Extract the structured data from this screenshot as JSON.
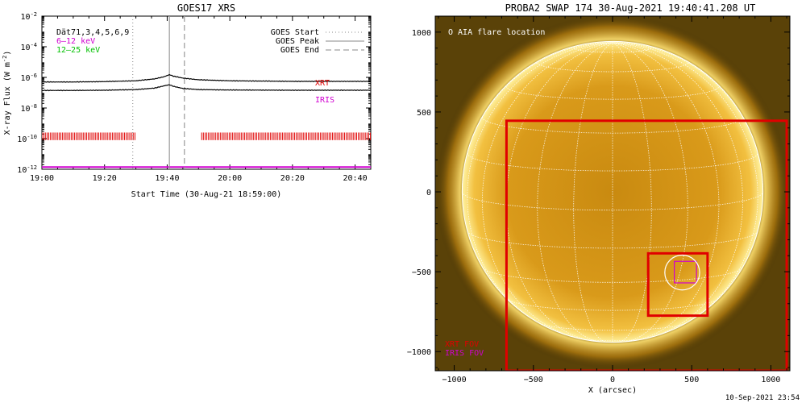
{
  "goes_panel": {
    "title": "GOES17 XRS",
    "ylabel_main": "X-ray Flux (W m",
    "ylabel_sup": "-2",
    "ylabel_close": ")",
    "xlabel": "Start Time (30-Aug-21 18:59:00)",
    "key_lines": [
      "Dät71,3,4,5,6,9",
      "6–12 keV",
      "12–25 keV"
    ],
    "key_colors": [
      "#000000",
      "#d000d0",
      "#00c000"
    ],
    "legend": [
      "GOES Start",
      "GOES Peak",
      "GOES End"
    ],
    "xrt_label": "XRT",
    "iris_label": "IRIS",
    "xrt_color": "#e00000",
    "iris_color": "#d000d0"
  },
  "swap_panel": {
    "title": "PROBA2 SWAP 174 30-Aug-2021 19:40:41.208 UT",
    "annotation": "O AIA flare location",
    "fov_labels": [
      "XRT FOV",
      "IRIS FOV"
    ],
    "fov_colors": [
      "#e00000",
      "#d000d0"
    ],
    "xlabel": "X (arcsec)",
    "footer": "10-Sep-2021 23:54"
  },
  "chart_data": [
    {
      "type": "line",
      "title": "GOES17 XRS",
      "xlabel": "Start Time (30-Aug-21 18:59:00)",
      "ylabel": "X-ray Flux (W m^-2)",
      "x_ticks": [
        "19:00",
        "19:20",
        "19:40",
        "20:00",
        "20:20",
        "20:40"
      ],
      "x_tick_minutes": [
        0,
        20,
        40,
        60,
        80,
        100
      ],
      "xlim_minutes": [
        0,
        105
      ],
      "y_scale": "log",
      "ylim": [
        1e-12,
        0.01
      ],
      "y_ticks": [
        "10^-12",
        "10^-10",
        "10^-8",
        "10^-6",
        "10^-4",
        "10^-2"
      ],
      "y_tick_exponents": [
        -12,
        -10,
        -8,
        -6,
        -4,
        -2
      ],
      "vlines_minutes": {
        "GOES Start": 29,
        "GOES Peak": 40.7,
        "GOES End": 45.5
      },
      "series": [
        {
          "name": "6–12 keV",
          "x_minutes": [
            0,
            10,
            20,
            30,
            36,
            39,
            40.7,
            42,
            45,
            50,
            60,
            80,
            105
          ],
          "values": [
            5e-07,
            5e-07,
            5.3e-07,
            6e-07,
            8e-07,
            1.1e-06,
            1.5e-06,
            1.2e-06,
            9e-07,
            7e-07,
            6e-07,
            5.5e-07,
            5.5e-07
          ]
        },
        {
          "x_minutes": [
            0,
            10,
            20,
            30,
            36,
            39,
            40.7,
            42,
            45,
            50,
            60,
            80,
            105
          ],
          "values": [
            1.4e-07,
            1.4e-07,
            1.45e-07,
            1.6e-07,
            2e-07,
            2.8e-07,
            3.3e-07,
            2.6e-07,
            1.9e-07,
            1.6e-07,
            1.5e-07,
            1.45e-07,
            1.45e-07
          ]
        }
      ],
      "xrt_coverage_minutes": [
        [
          0,
          30
        ],
        [
          51,
          105
        ]
      ],
      "iris_coverage_minutes": [
        [
          0,
          105
        ]
      ]
    },
    {
      "type": "scatter",
      "title": "PROBA2 SWAP 174 30-Aug-2021 19:40:41.208 UT",
      "xlabel": "X (arcsec)",
      "x_ticks": [
        -1000,
        -500,
        0,
        500,
        1000
      ],
      "y_ticks": [
        -1000,
        -500,
        0,
        500,
        1000
      ],
      "xlim": [
        -1120,
        1120
      ],
      "ylim": [
        -1120,
        1100
      ],
      "solar_radius_arcsec": 950,
      "xrt_fov_boxes": [
        {
          "x0": -670,
          "x1": 1100,
          "y0": -1120,
          "y1": 445
        },
        {
          "x0": 225,
          "x1": 600,
          "y0": -775,
          "y1": -385
        }
      ],
      "iris_fov_box": {
        "x0": 390,
        "x1": 530,
        "y0": -570,
        "y1": -435
      },
      "aia_flare_location": {
        "x": 440,
        "y": -505,
        "r": 110
      }
    }
  ]
}
